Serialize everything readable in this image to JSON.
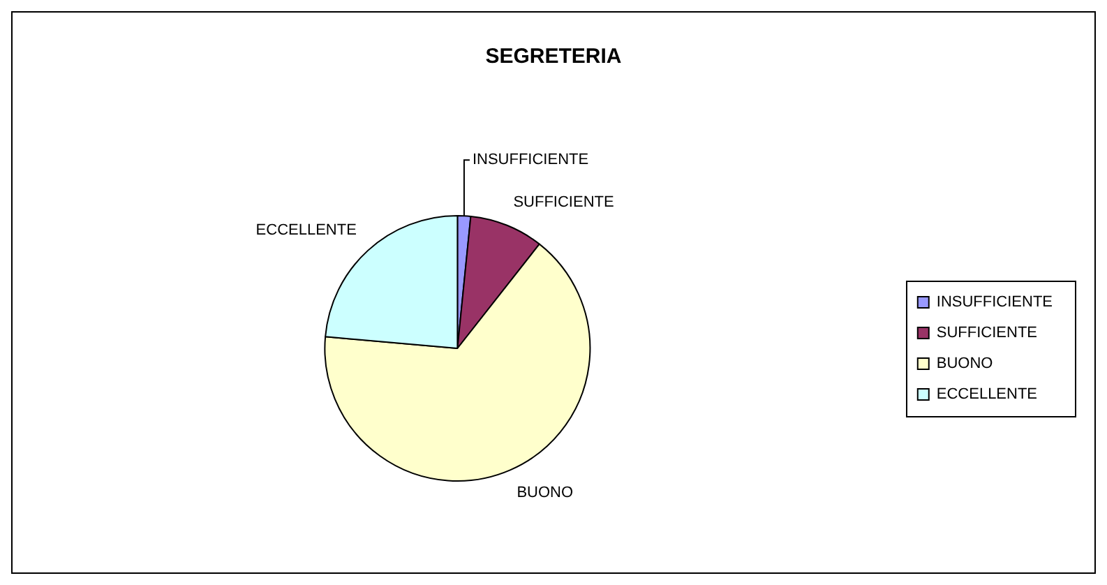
{
  "chart_data": {
    "type": "pie",
    "title": "SEGRETERIA",
    "categories": [
      "INSUFFICIENTE",
      "SUFFICIENTE",
      "BUONO",
      "ECCELLENTE"
    ],
    "values": [
      1.6,
      9,
      65.8,
      23.6
    ],
    "colors": [
      "#9999ff",
      "#993366",
      "#ffffcc",
      "#ccffff"
    ],
    "legend": "right"
  }
}
